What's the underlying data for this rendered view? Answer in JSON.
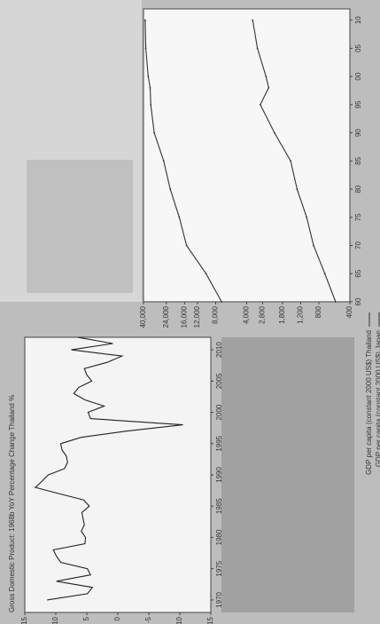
{
  "chart_data": [
    {
      "type": "line",
      "title": "Gross Domestic Product: 1968b YoY Percentage Change Thailand %",
      "x": [
        1970,
        1971,
        1972,
        1973,
        1974,
        1975,
        1976,
        1977,
        1978,
        1979,
        1980,
        1981,
        1982,
        1983,
        1984,
        1985,
        1986,
        1987,
        1988,
        1989,
        1990,
        1991,
        1992,
        1993,
        1994,
        1995,
        1996,
        1997,
        1998,
        1999,
        2000,
        2001,
        2002,
        2003,
        2004,
        2005,
        2006,
        2007,
        2008,
        2009,
        2010,
        2011,
        2012
      ],
      "values": [
        11.4,
        4.9,
        4.1,
        9.9,
        4.4,
        4.9,
        9.2,
        9.9,
        10.4,
        5.3,
        5.2,
        5.9,
        5.4,
        5.6,
        5.8,
        4.6,
        5.5,
        9.5,
        13.3,
        12.2,
        11.2,
        8.6,
        8.1,
        8.3,
        9.0,
        9.2,
        5.9,
        -1.4,
        -10.5,
        4.4,
        4.8,
        2.2,
        5.3,
        7.1,
        6.3,
        4.2,
        5.0,
        5.4,
        1.7,
        -0.7,
        7.5,
        0.8,
        6.5
      ],
      "color": "#222222",
      "xlim": [
        1968,
        2012
      ],
      "xticks": [
        1970,
        1975,
        1980,
        1985,
        1990,
        1995,
        2000,
        2005,
        2010
      ],
      "ylim": [
        -15,
        15
      ],
      "yticks": [
        15,
        10,
        5,
        0,
        -5,
        -10,
        -15
      ]
    },
    {
      "type": "line",
      "x": [
        1960,
        1965,
        1970,
        1975,
        1980,
        1985,
        1990,
        1995,
        1998,
        2000,
        2005,
        2010
      ],
      "series": [
        {
          "name": "GDP per capita (constant 2000 US$) Thailand",
          "color": "#333333",
          "values": [
            550,
            700,
            900,
            1050,
            1300,
            1500,
            2150,
            2950,
            2450,
            2600,
            3150,
            3500
          ]
        },
        {
          "name": "GDP per capita (constant 2000 US$) Japan",
          "color": "#333333",
          "values": [
            7000,
            9900,
            15300,
            18000,
            22000,
            25500,
            31500,
            34000,
            34500,
            36000,
            38000,
            38500
          ]
        }
      ],
      "xlim": [
        1960,
        2012
      ],
      "xticks": [
        {
          "value": 1960,
          "label": "60"
        },
        {
          "value": 1965,
          "label": "65"
        },
        {
          "value": 1970,
          "label": "70"
        },
        {
          "value": 1975,
          "label": "75"
        },
        {
          "value": 1980,
          "label": "80"
        },
        {
          "value": 1985,
          "label": "85"
        },
        {
          "value": 1990,
          "label": "90"
        },
        {
          "value": 1995,
          "label": "95"
        },
        {
          "value": 2000,
          "label": "00"
        },
        {
          "value": 2005,
          "label": "05"
        },
        {
          "value": 2010,
          "label": "10"
        }
      ],
      "ylim": [
        400,
        40000
      ],
      "log_scale": true,
      "yticks": [
        {
          "value": 40000,
          "label": "40,000"
        },
        {
          "value": 24000,
          "label": "24,000"
        },
        {
          "value": 16000,
          "label": "16,000"
        },
        {
          "value": 12000,
          "label": "12,000"
        },
        {
          "value": 8000,
          "label": "8,000"
        },
        {
          "value": 4000,
          "label": "4,000"
        },
        {
          "value": 2800,
          "label": "2,800"
        },
        {
          "value": 1800,
          "label": "1,800"
        },
        {
          "value": 1200,
          "label": "1,200"
        },
        800,
        400
      ]
    }
  ]
}
